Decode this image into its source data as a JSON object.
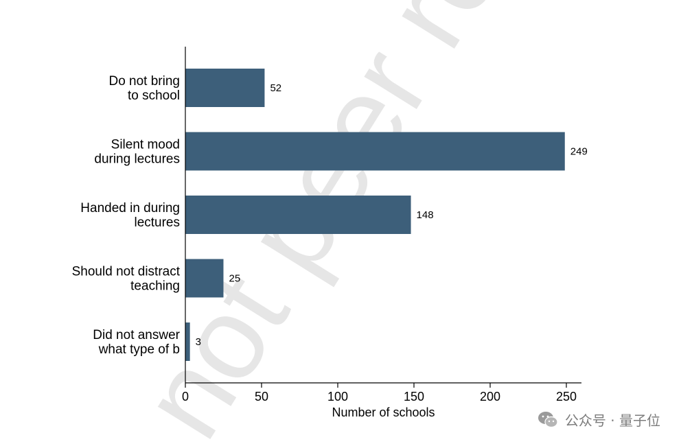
{
  "watermark": "not peer re",
  "brand": {
    "text": "公众号 · 量子位"
  },
  "colors": {
    "bar": "#3d5f7a",
    "watermark": "#e6e6e6"
  },
  "chart_data": {
    "type": "bar",
    "orientation": "horizontal",
    "categories": [
      [
        "Do not bring",
        "to school"
      ],
      [
        "Silent mood",
        "during lectures"
      ],
      [
        "Handed in during",
        "lectures"
      ],
      [
        "Should not distract",
        "teaching"
      ],
      [
        "Did not answer",
        "what type of b"
      ]
    ],
    "values": [
      52,
      249,
      148,
      25,
      3
    ],
    "xlabel": "Number of schools",
    "xlim": [
      0,
      250
    ],
    "xticks": [
      0,
      50,
      100,
      150,
      200,
      250
    ],
    "grid": false,
    "data_labels": true
  }
}
